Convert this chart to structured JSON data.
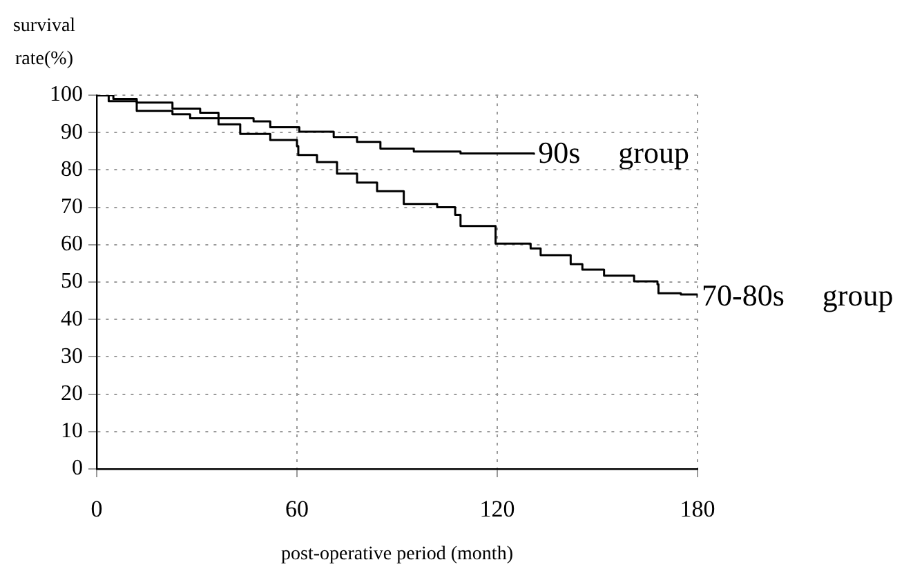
{
  "chart_data": {
    "type": "step",
    "xlabel": "post-operative period (month)",
    "ylabel": "survival rate(%)",
    "xlim": [
      0,
      180
    ],
    "xticks": [
      0,
      60,
      120,
      180
    ],
    "ylim": [
      0,
      100
    ],
    "yticks": [
      0,
      10,
      20,
      30,
      40,
      50,
      60,
      70,
      80,
      90,
      100
    ],
    "grid": true,
    "legend": false,
    "marker": "none",
    "line_style": "solid",
    "series": [
      {
        "name": "90s group",
        "color": "#000000",
        "x": [
          0,
          5,
          12,
          22.7,
          31,
          36.5,
          47,
          52,
          60.7,
          71,
          78,
          85,
          95,
          109,
          131
        ],
        "values": [
          100,
          99,
          98,
          96.4,
          95.3,
          93.8,
          93,
          91.4,
          90.2,
          88.8,
          87.5,
          85.7,
          84.9,
          84.4,
          84.1
        ]
      },
      {
        "name": "70-80s group",
        "color": "#000000",
        "x": [
          0,
          3.6,
          12,
          22.7,
          28,
          36.5,
          43,
          52,
          60,
          60.4,
          66,
          72,
          78,
          84,
          92,
          102,
          107.4,
          109,
          119.5,
          130,
          133,
          142,
          145.5,
          152,
          161,
          168,
          168.3,
          175,
          180
        ],
        "values": [
          100,
          98.4,
          95.8,
          94.9,
          93.8,
          92.2,
          89.6,
          88,
          86.4,
          84,
          82.1,
          79,
          76.6,
          74.3,
          70.9,
          70,
          68,
          65,
          60.3,
          59,
          57.2,
          54.8,
          53.3,
          51.7,
          50.2,
          49.4,
          47,
          46.7,
          45.8
        ]
      }
    ]
  }
}
